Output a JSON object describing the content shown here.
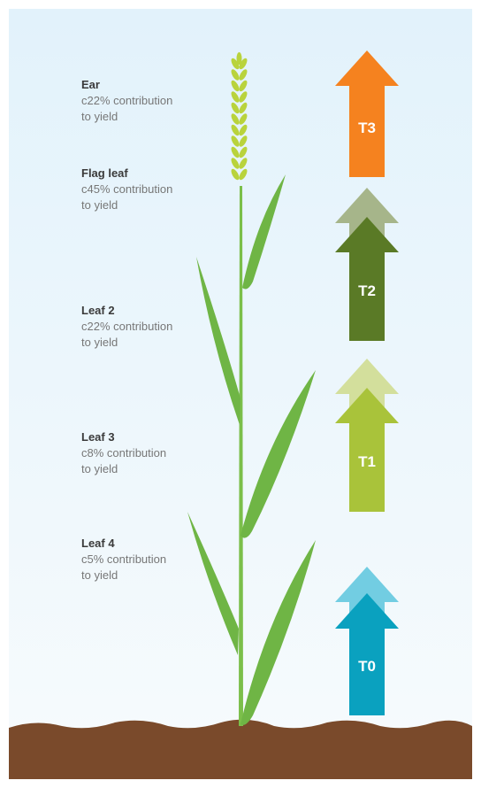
{
  "stages": [
    {
      "name": "Ear",
      "detail": [
        "c22% contribution",
        "to yield"
      ]
    },
    {
      "name": "Flag leaf",
      "detail": [
        "c45% contribution",
        "to yield"
      ]
    },
    {
      "name": "Leaf 2",
      "detail": [
        "c22% contribution",
        "to yield"
      ]
    },
    {
      "name": "Leaf 3",
      "detail": [
        "c8% contribution",
        "to yield"
      ]
    },
    {
      "name": "Leaf 4",
      "detail": [
        "c5% contribution",
        "to yield"
      ]
    }
  ],
  "timings": [
    {
      "label": "T3"
    },
    {
      "label": "T2"
    },
    {
      "label": "T1"
    },
    {
      "label": "T0"
    }
  ]
}
